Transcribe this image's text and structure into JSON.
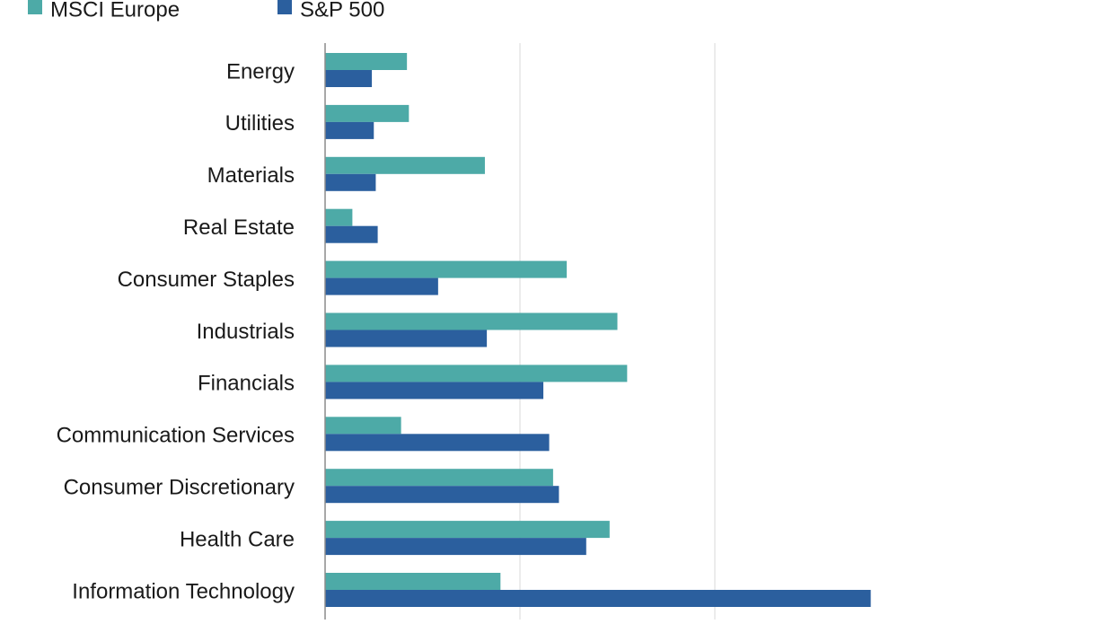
{
  "chart_data": {
    "type": "bar",
    "orientation": "horizontal",
    "categories": [
      "Energy",
      "Utilities",
      "Materials",
      "Real Estate",
      "Consumer Staples",
      "Industrials",
      "Financials",
      "Communication Services",
      "Consumer Discretionary",
      "Health Care",
      "Information Technology"
    ],
    "series": [
      {
        "name": "MSCI Europe",
        "color": "#4daaa7",
        "values": [
          4.2,
          4.3,
          8.2,
          1.4,
          12.4,
          15.0,
          15.5,
          3.9,
          11.7,
          14.6,
          9.0
        ]
      },
      {
        "name": "S&P 500",
        "color": "#2b5f9e",
        "values": [
          2.4,
          2.5,
          2.6,
          2.7,
          5.8,
          8.3,
          11.2,
          11.5,
          12.0,
          13.4,
          28.0
        ]
      }
    ],
    "xlim": [
      0,
      30
    ],
    "grid": true,
    "legend_position": "top-left",
    "title": "",
    "xlabel": "",
    "ylabel": ""
  }
}
